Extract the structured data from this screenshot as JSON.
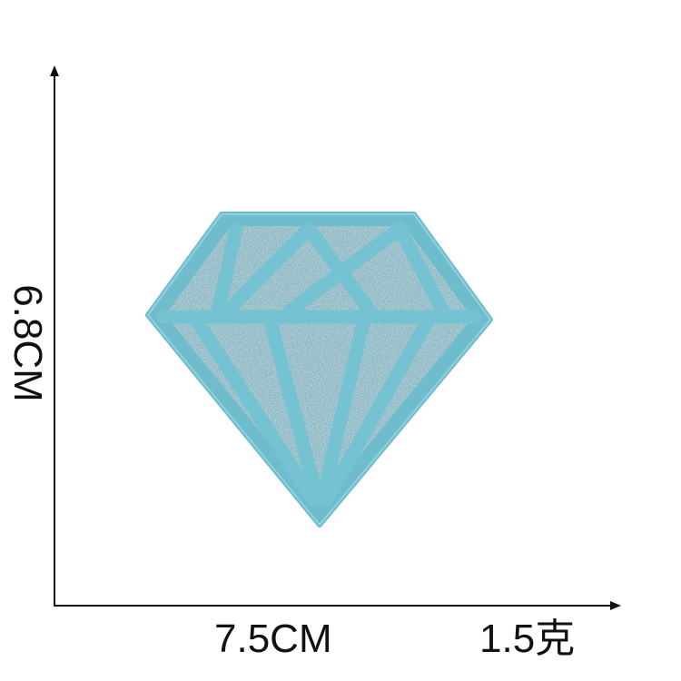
{
  "dimensions": {
    "width_label": "7.5CM",
    "height_label": "6.8CM",
    "weight_label": "1.5克"
  },
  "product": {
    "type": "diamond-patch",
    "colors": {
      "fill": "#7fb3c0",
      "outline": "#6fbccd",
      "stitch": "#74c2d2",
      "glitter_light": "#c5dde4"
    }
  },
  "colors": {
    "axis": "#111111",
    "background": "#ffffff"
  }
}
